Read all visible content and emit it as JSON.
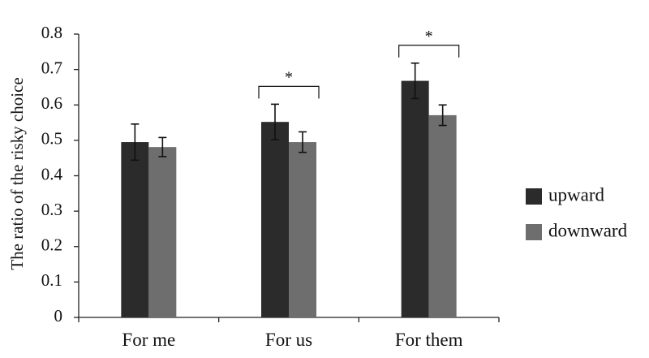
{
  "chart_data": {
    "type": "bar",
    "title": "",
    "xlabel": "",
    "ylabel": "The ratio of the risky choice",
    "ylim": [
      0,
      0.8
    ],
    "yticks": [
      "0",
      "0.1",
      "0.2",
      "0.3",
      "0.4",
      "0.5",
      "0.6",
      "0.7",
      "0.8"
    ],
    "categories": [
      "For me",
      "For us",
      "For them"
    ],
    "series": [
      {
        "name": "upward",
        "color": "#2b2b2b",
        "values": [
          0.495,
          0.552,
          0.668
        ],
        "errors": [
          0.051,
          0.05,
          0.05
        ]
      },
      {
        "name": "downward",
        "color": "#6e6e6e",
        "values": [
          0.481,
          0.495,
          0.571
        ],
        "errors": [
          0.027,
          0.029,
          0.029
        ]
      }
    ],
    "significance": [
      {
        "category": "For us",
        "label": "*"
      },
      {
        "category": "For them",
        "label": "*"
      }
    ],
    "legend_position": "right",
    "grid": false
  }
}
